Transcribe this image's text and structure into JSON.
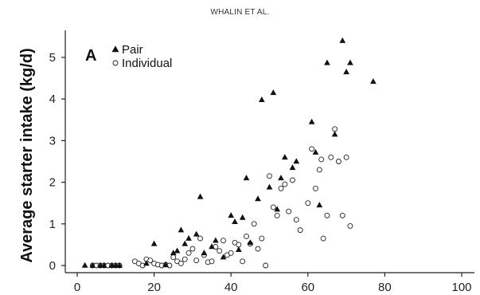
{
  "header": {
    "running_head": "WHALIN ET AL."
  },
  "chart_data": {
    "type": "scatter",
    "panel_label": "A",
    "ylabel": "Average starter intake (kg/d)",
    "xlabel": "",
    "xlim": [
      0,
      100
    ],
    "ylim": [
      0,
      5.5
    ],
    "xticks": [
      0,
      20,
      40,
      60,
      80,
      100
    ],
    "yticks": [
      0,
      1,
      2,
      3,
      4,
      5
    ],
    "grid": false,
    "legend_position": "top-left",
    "series": [
      {
        "name": "Pair",
        "marker": "filled-triangle",
        "points": [
          [
            2,
            0
          ],
          [
            4,
            0
          ],
          [
            6,
            0
          ],
          [
            7,
            0
          ],
          [
            9,
            0
          ],
          [
            10,
            0
          ],
          [
            11,
            0
          ],
          [
            18,
            0.05
          ],
          [
            20,
            0.52
          ],
          [
            23,
            0.02
          ],
          [
            25,
            0.3
          ],
          [
            26,
            0.35
          ],
          [
            27,
            0.85
          ],
          [
            28,
            0.52
          ],
          [
            29,
            0.65
          ],
          [
            31,
            0.75
          ],
          [
            32,
            1.65
          ],
          [
            33,
            0.3
          ],
          [
            35,
            0.45
          ],
          [
            36,
            0.6
          ],
          [
            38,
            0.2
          ],
          [
            40,
            1.2
          ],
          [
            41,
            1.05
          ],
          [
            42,
            0.38
          ],
          [
            43,
            1.15
          ],
          [
            44,
            2.1
          ],
          [
            45,
            0.55
          ],
          [
            47,
            1.6
          ],
          [
            48,
            3.98
          ],
          [
            50,
            1.88
          ],
          [
            51,
            4.15
          ],
          [
            52,
            1.35
          ],
          [
            53,
            2.1
          ],
          [
            54,
            2.6
          ],
          [
            56,
            2.35
          ],
          [
            57,
            2.5
          ],
          [
            61,
            3.45
          ],
          [
            62,
            2.72
          ],
          [
            63,
            1.45
          ],
          [
            65,
            4.87
          ],
          [
            67,
            3.15
          ],
          [
            69,
            5.4
          ],
          [
            70,
            4.65
          ],
          [
            71,
            4.87
          ],
          [
            77,
            4.42
          ]
        ]
      },
      {
        "name": "Individual",
        "marker": "open-circle",
        "points": [
          [
            4,
            0
          ],
          [
            5,
            0
          ],
          [
            6,
            0
          ],
          [
            7,
            0
          ],
          [
            8,
            0
          ],
          [
            9,
            0
          ],
          [
            10,
            0
          ],
          [
            11,
            0
          ],
          [
            15,
            0.1
          ],
          [
            16,
            0.05
          ],
          [
            17,
            0.0
          ],
          [
            18,
            0.15
          ],
          [
            19,
            0.12
          ],
          [
            20,
            0.05
          ],
          [
            21,
            0.02
          ],
          [
            22,
            0.0
          ],
          [
            23,
            0.02
          ],
          [
            24,
            0.0
          ],
          [
            25,
            0.2
          ],
          [
            26,
            0.1
          ],
          [
            27,
            0.05
          ],
          [
            28,
            0.15
          ],
          [
            29,
            0.3
          ],
          [
            30,
            0.4
          ],
          [
            31,
            0.12
          ],
          [
            32,
            0.65
          ],
          [
            33,
            0.25
          ],
          [
            34,
            0.08
          ],
          [
            35,
            0.1
          ],
          [
            36,
            0.45
          ],
          [
            37,
            0.35
          ],
          [
            38,
            0.6
          ],
          [
            39,
            0.25
          ],
          [
            40,
            0.3
          ],
          [
            41,
            0.55
          ],
          [
            42,
            0.5
          ],
          [
            43,
            0.1
          ],
          [
            44,
            0.7
          ],
          [
            45,
            0.52
          ],
          [
            46,
            1.0
          ],
          [
            47,
            0.4
          ],
          [
            48,
            0.65
          ],
          [
            49,
            0.0
          ],
          [
            50,
            2.15
          ],
          [
            51,
            1.4
          ],
          [
            52,
            1.2
          ],
          [
            53,
            1.85
          ],
          [
            54,
            1.95
          ],
          [
            55,
            1.3
          ],
          [
            56,
            2.05
          ],
          [
            57,
            1.1
          ],
          [
            58,
            0.85
          ],
          [
            60,
            1.5
          ],
          [
            61,
            2.8
          ],
          [
            62,
            1.85
          ],
          [
            63,
            2.3
          ],
          [
            63.5,
            2.55
          ],
          [
            64,
            0.65
          ],
          [
            65,
            1.2
          ],
          [
            66,
            2.6
          ],
          [
            67,
            3.28
          ],
          [
            68,
            2.5
          ],
          [
            69,
            1.2
          ],
          [
            70,
            2.6
          ],
          [
            71,
            0.95
          ]
        ]
      }
    ]
  }
}
